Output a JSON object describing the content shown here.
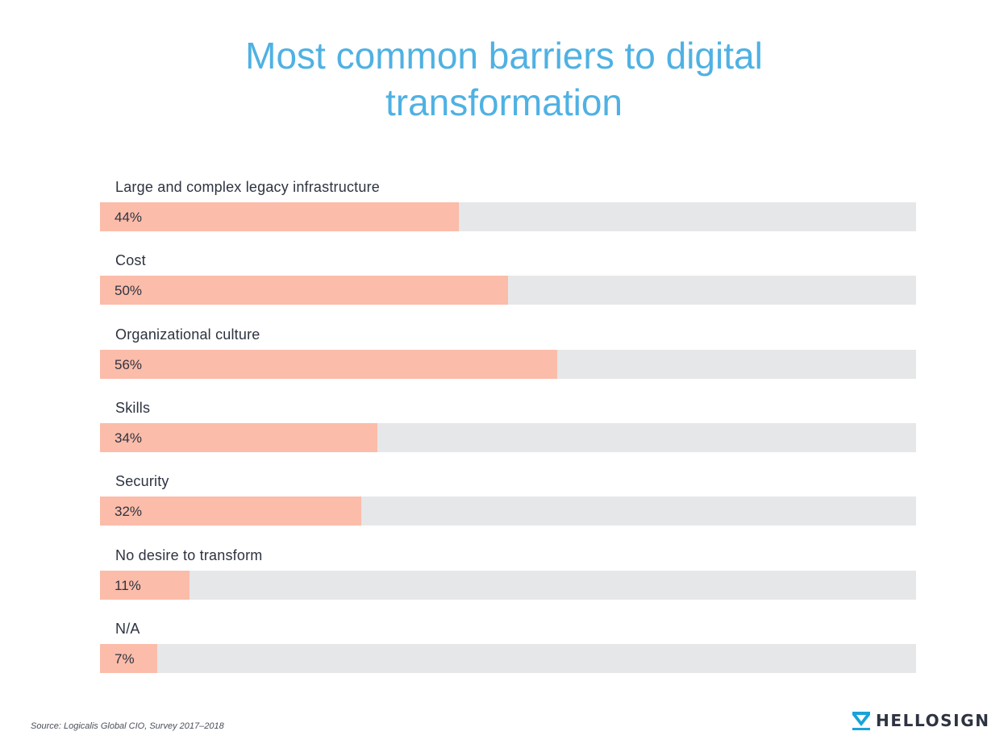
{
  "title_line1": "Most common barriers to digital",
  "title_line2": "transformation",
  "source": "Source: Logicalis Global CIO, Survey 2017–2018",
  "logo_text": "HELLOSIGN",
  "colors": {
    "title": "#4fb1e3",
    "bar_fill": "#fbbcaa",
    "bar_track": "#e6e7e9",
    "logo_accent": "#1aa3d8"
  },
  "chart_data": {
    "type": "bar",
    "orientation": "horizontal",
    "title": "Most common barriers to digital transformation",
    "xlim": [
      0,
      100
    ],
    "grid": false,
    "categories": [
      "Large and complex legacy infrastructure",
      "Cost",
      "Organizational culture",
      "Skills",
      "Security",
      "No desire to transform",
      "N/A"
    ],
    "values": [
      44,
      50,
      56,
      34,
      32,
      11,
      7
    ],
    "value_labels": [
      "44%",
      "50%",
      "56%",
      "34%",
      "32%",
      "11%",
      "7%"
    ]
  }
}
